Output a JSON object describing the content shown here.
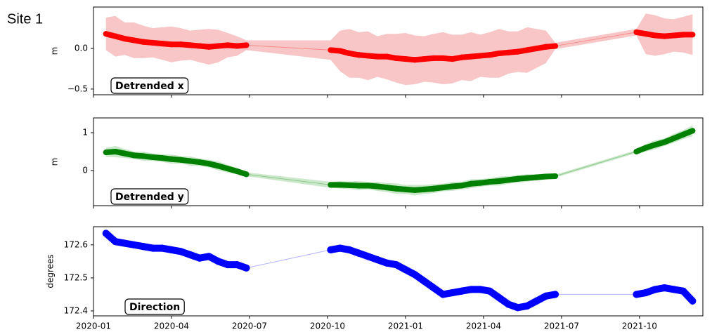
{
  "suptitle": "Site 1",
  "chart_data": [
    {
      "type": "line",
      "annotation": "Detrended x",
      "ylabel": "m",
      "xlim": [
        2020.0,
        2021.953
      ],
      "ylim": [
        -0.57,
        0.51
      ],
      "yticks": [
        {
          "value": -0.5,
          "label": "−0.5"
        },
        {
          "value": 0,
          "label": "0.0"
        }
      ],
      "x": [
        2020.04,
        2020.07,
        2020.1,
        2020.13,
        2020.16,
        2020.19,
        2020.22,
        2020.25,
        2020.28,
        2020.31,
        2020.34,
        2020.37,
        2020.4,
        2020.43,
        2020.46,
        2020.49,
        2020.76,
        2020.79,
        2020.82,
        2020.85,
        2020.88,
        2020.91,
        2020.94,
        2020.97,
        2021.0,
        2021.03,
        2021.06,
        2021.09,
        2021.12,
        2021.15,
        2021.18,
        2021.21,
        2021.24,
        2021.27,
        2021.3,
        2021.33,
        2021.36,
        2021.39,
        2021.42,
        2021.45,
        2021.48,
        2021.74,
        2021.77,
        2021.8,
        2021.83,
        2021.86,
        2021.89,
        2021.92
      ],
      "series": [
        {
          "color": "#ff0000",
          "band_color": "#f4a0a0",
          "values": [
            0.18,
            0.15,
            0.12,
            0.1,
            0.08,
            0.07,
            0.06,
            0.05,
            0.05,
            0.04,
            0.03,
            0.02,
            0.03,
            0.04,
            0.03,
            0.04,
            -0.02,
            -0.03,
            -0.06,
            -0.08,
            -0.09,
            -0.1,
            -0.1,
            -0.12,
            -0.13,
            -0.14,
            -0.13,
            -0.12,
            -0.12,
            -0.13,
            -0.11,
            -0.1,
            -0.09,
            -0.08,
            -0.06,
            -0.05,
            -0.04,
            -0.02,
            0.0,
            0.02,
            0.03,
            0.2,
            0.18,
            0.16,
            0.15,
            0.16,
            0.17,
            0.17
          ],
          "errors": [
            0.2,
            0.25,
            0.2,
            0.22,
            0.2,
            0.18,
            0.2,
            0.22,
            0.2,
            0.18,
            0.2,
            0.22,
            0.2,
            0.15,
            0.12,
            0.06,
            0.12,
            0.25,
            0.3,
            0.28,
            0.3,
            0.25,
            0.28,
            0.3,
            0.32,
            0.3,
            0.28,
            0.3,
            0.32,
            0.3,
            0.28,
            0.3,
            0.26,
            0.28,
            0.3,
            0.26,
            0.25,
            0.28,
            0.24,
            0.2,
            0.04,
            0.04,
            0.25,
            0.25,
            0.22,
            0.2,
            0.22,
            0.25
          ]
        }
      ]
    },
    {
      "type": "line",
      "annotation": "Detrended y",
      "ylabel": "m",
      "xlim": [
        2020.0,
        2021.953
      ],
      "ylim": [
        -0.93,
        1.39
      ],
      "yticks": [
        0,
        1
      ],
      "x": [
        2020.04,
        2020.07,
        2020.1,
        2020.13,
        2020.16,
        2020.19,
        2020.22,
        2020.25,
        2020.28,
        2020.31,
        2020.34,
        2020.37,
        2020.4,
        2020.43,
        2020.46,
        2020.49,
        2020.76,
        2020.79,
        2020.82,
        2020.85,
        2020.88,
        2020.91,
        2020.94,
        2020.97,
        2021.0,
        2021.03,
        2021.06,
        2021.09,
        2021.12,
        2021.15,
        2021.18,
        2021.21,
        2021.24,
        2021.27,
        2021.3,
        2021.33,
        2021.36,
        2021.39,
        2021.42,
        2021.45,
        2021.48,
        2021.74,
        2021.77,
        2021.8,
        2021.83,
        2021.86,
        2021.89,
        2021.92
      ],
      "series": [
        {
          "color": "#008000",
          "band_color": "#a8d8a8",
          "values": [
            0.48,
            0.5,
            0.45,
            0.4,
            0.38,
            0.35,
            0.33,
            0.3,
            0.28,
            0.25,
            0.22,
            0.18,
            0.12,
            0.05,
            -0.02,
            -0.1,
            -0.38,
            -0.38,
            -0.39,
            -0.4,
            -0.4,
            -0.42,
            -0.45,
            -0.48,
            -0.5,
            -0.52,
            -0.5,
            -0.48,
            -0.45,
            -0.42,
            -0.4,
            -0.35,
            -0.33,
            -0.3,
            -0.28,
            -0.25,
            -0.22,
            -0.2,
            -0.18,
            -0.16,
            -0.15,
            0.5,
            0.6,
            0.68,
            0.75,
            0.85,
            0.95,
            1.05
          ],
          "errors": [
            0.12,
            0.15,
            0.12,
            0.1,
            0.12,
            0.1,
            0.1,
            0.12,
            0.1,
            0.12,
            0.1,
            0.1,
            0.12,
            0.1,
            0.08,
            0.05,
            0.08,
            0.1,
            0.1,
            0.12,
            0.1,
            0.12,
            0.12,
            0.14,
            0.12,
            0.14,
            0.12,
            0.12,
            0.1,
            0.12,
            0.1,
            0.12,
            0.1,
            0.1,
            0.12,
            0.1,
            0.1,
            0.1,
            0.08,
            0.08,
            0.04,
            0.04,
            0.1,
            0.12,
            0.1,
            0.12,
            0.12,
            0.14
          ]
        }
      ]
    },
    {
      "type": "line",
      "annotation": "Direction",
      "ylabel": "degrees",
      "xlim": [
        2020.0,
        2021.953
      ],
      "ylim": [
        172.385,
        172.655
      ],
      "yticks": [
        172.4,
        172.5,
        172.6
      ],
      "xticks": [
        {
          "value": 2020.0,
          "label": "2020-01"
        },
        {
          "value": 2020.25,
          "label": "2020-04"
        },
        {
          "value": 2020.5,
          "label": "2020-07"
        },
        {
          "value": 2020.75,
          "label": "2020-10"
        },
        {
          "value": 2021.0,
          "label": "2021-01"
        },
        {
          "value": 2021.25,
          "label": "2021-04"
        },
        {
          "value": 2021.5,
          "label": "2021-07"
        },
        {
          "value": 2021.75,
          "label": "2021-10"
        }
      ],
      "x": [
        2020.04,
        2020.07,
        2020.1,
        2020.13,
        2020.16,
        2020.19,
        2020.22,
        2020.25,
        2020.28,
        2020.31,
        2020.34,
        2020.37,
        2020.4,
        2020.43,
        2020.46,
        2020.49,
        2020.76,
        2020.79,
        2020.82,
        2020.85,
        2020.88,
        2020.91,
        2020.94,
        2020.97,
        2021.0,
        2021.03,
        2021.06,
        2021.09,
        2021.12,
        2021.15,
        2021.18,
        2021.21,
        2021.24,
        2021.27,
        2021.3,
        2021.33,
        2021.36,
        2021.39,
        2021.42,
        2021.45,
        2021.48,
        2021.74,
        2021.77,
        2021.8,
        2021.83,
        2021.86,
        2021.89,
        2021.92
      ],
      "series": [
        {
          "color": "#0000ff",
          "values": [
            172.635,
            172.61,
            172.605,
            172.6,
            172.595,
            172.59,
            172.59,
            172.585,
            172.58,
            172.57,
            172.56,
            172.565,
            172.55,
            172.54,
            172.54,
            172.53,
            172.585,
            172.59,
            172.585,
            172.575,
            172.565,
            172.555,
            172.545,
            172.54,
            172.525,
            172.51,
            172.49,
            172.47,
            172.45,
            172.455,
            172.46,
            172.465,
            172.465,
            172.46,
            172.44,
            172.42,
            172.41,
            172.415,
            172.43,
            172.445,
            172.45,
            172.45,
            172.455,
            172.465,
            172.47,
            172.465,
            172.46,
            172.43
          ]
        }
      ]
    }
  ]
}
